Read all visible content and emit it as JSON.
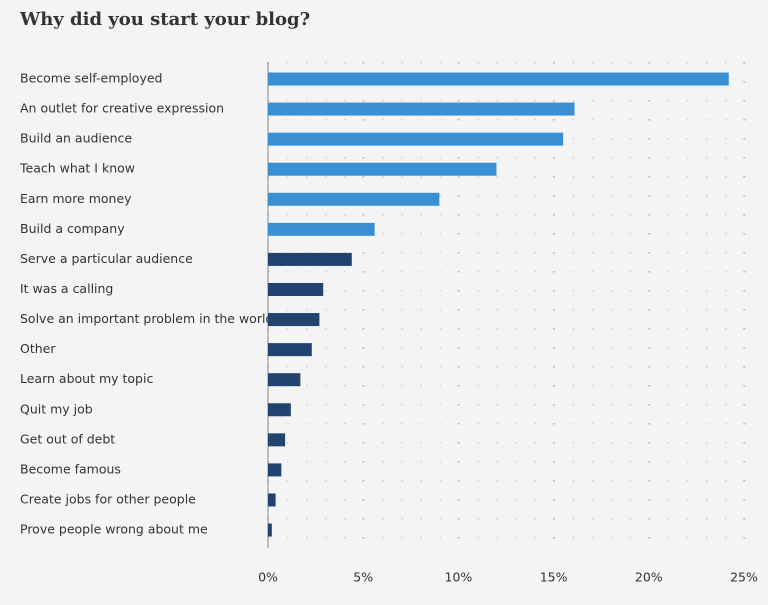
{
  "chart_data": {
    "type": "hbar",
    "title": "Why did you start your blog?",
    "categories": [
      "Become self-employed",
      "An outlet for creative expression",
      "Build an audience",
      "Teach what I know",
      "Earn more money",
      "Build a company",
      "Serve a particular audience",
      "It was a calling",
      "Solve an important problem in the world",
      "Other",
      "Learn about my topic",
      "Quit my job",
      "Get out of debt",
      "Become famous",
      "Create jobs for other people",
      "Prove people wrong about me"
    ],
    "values": [
      24.2,
      16.1,
      15.5,
      12.0,
      9.0,
      5.6,
      4.4,
      2.9,
      2.7,
      2.3,
      1.7,
      1.2,
      0.9,
      0.7,
      0.4,
      0.2
    ],
    "colors": [
      "#3a8fd3",
      "#3a8fd3",
      "#3a8fd3",
      "#3a8fd3",
      "#3a8fd3",
      "#3a8fd3",
      "#22426f",
      "#22426f",
      "#22426f",
      "#22426f",
      "#22426f",
      "#22426f",
      "#22426f",
      "#22426f",
      "#22426f",
      "#22426f"
    ],
    "xlim": [
      0,
      25
    ],
    "xticks": [
      {
        "value": 0,
        "label": "0%"
      },
      {
        "value": 5,
        "label": "5%"
      },
      {
        "value": 10,
        "label": "10%"
      },
      {
        "value": 15,
        "label": "15%"
      },
      {
        "value": 20,
        "label": "20%"
      },
      {
        "value": 25,
        "label": "25%"
      }
    ],
    "grid": true
  }
}
